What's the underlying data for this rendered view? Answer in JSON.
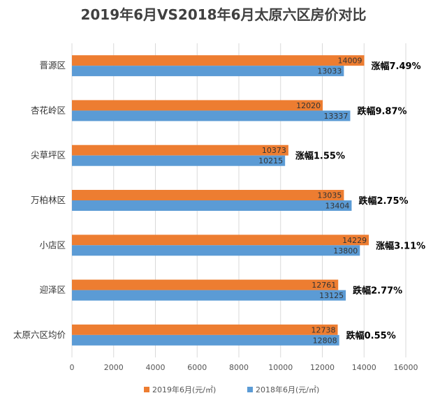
{
  "chart_data": {
    "type": "bar",
    "orientation": "horizontal",
    "title": "2019年6月VS2018年6月太原六区房价对比",
    "categories": [
      "晋源区",
      "杏花岭区",
      "尖草坪区",
      "万柏林区",
      "小店区",
      "迎泽区",
      "太原六区均价"
    ],
    "series": [
      {
        "name": "2019年6月(元/㎡)",
        "color": "#ED7D31",
        "values": [
          14009,
          12020,
          10373,
          13035,
          14229,
          12761,
          12738
        ]
      },
      {
        "name": "2018年6月(元/㎡)",
        "color": "#5B9BD5",
        "values": [
          13033,
          13337,
          10215,
          13404,
          13800,
          13125,
          12808
        ]
      }
    ],
    "annotations": [
      "涨幅7.49%",
      "跌幅9.87%",
      "涨幅1.55%",
      "跌幅2.75%",
      "涨幅3.11%",
      "跌幅2.77%",
      "跌幅0.55%"
    ],
    "xlim": [
      0,
      16000
    ],
    "xticks": [
      0,
      2000,
      4000,
      6000,
      8000,
      10000,
      12000,
      14000,
      16000
    ],
    "grid": true,
    "legend_position": "bottom"
  }
}
